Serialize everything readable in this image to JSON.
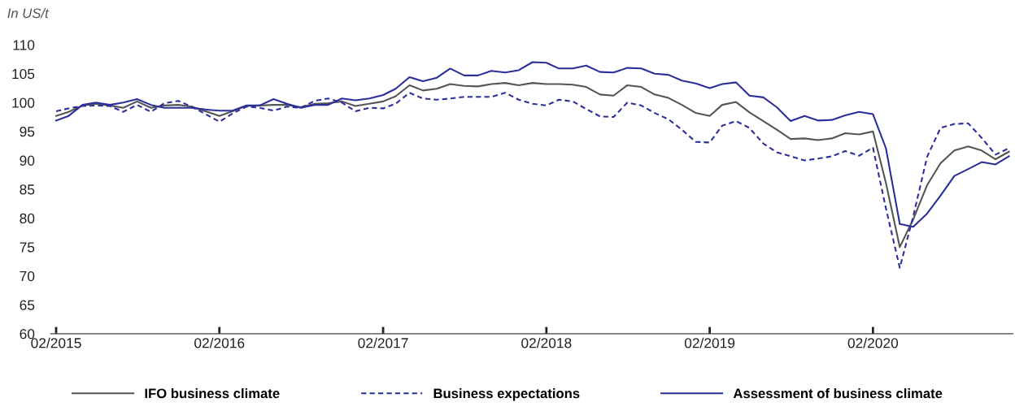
{
  "chart_data": {
    "type": "line",
    "ylabel": "In US/t",
    "x": [
      "2015-02",
      "2015-03",
      "2015-04",
      "2015-05",
      "2015-06",
      "2015-07",
      "2015-08",
      "2015-09",
      "2015-10",
      "2015-11",
      "2015-12",
      "2016-01",
      "2016-02",
      "2016-03",
      "2016-04",
      "2016-05",
      "2016-06",
      "2016-07",
      "2016-08",
      "2016-09",
      "2016-10",
      "2016-11",
      "2016-12",
      "2017-01",
      "2017-02",
      "2017-03",
      "2017-04",
      "2017-05",
      "2017-06",
      "2017-07",
      "2017-08",
      "2017-09",
      "2017-10",
      "2017-11",
      "2017-12",
      "2018-01",
      "2018-02",
      "2018-03",
      "2018-04",
      "2018-05",
      "2018-06",
      "2018-07",
      "2018-08",
      "2018-09",
      "2018-10",
      "2018-11",
      "2018-12",
      "2019-01",
      "2019-02",
      "2019-03",
      "2019-04",
      "2019-05",
      "2019-06",
      "2019-07",
      "2019-08",
      "2019-09",
      "2019-10",
      "2019-11",
      "2019-12",
      "2020-01",
      "2020-02",
      "2020-03",
      "2020-04",
      "2020-05",
      "2020-06",
      "2020-07",
      "2020-08",
      "2020-09",
      "2020-10",
      "2020-11",
      "2020-12"
    ],
    "series": [
      {
        "name": "IFO business climate",
        "color": "#555555",
        "line_style": "solid",
        "values": [
          97.7,
          98.4,
          99.5,
          99.8,
          99.5,
          99.1,
          100.2,
          99.1,
          99.5,
          99.6,
          99.3,
          98.5,
          97.7,
          98.5,
          99.4,
          99.5,
          99.6,
          99.6,
          99.2,
          99.8,
          99.9,
          100.2,
          99.4,
          99.8,
          100.2,
          101.1,
          103.0,
          102.1,
          102.4,
          103.2,
          102.9,
          102.8,
          103.2,
          103.4,
          103.0,
          103.4,
          103.2,
          103.2,
          103.1,
          102.7,
          101.4,
          101.2,
          103.0,
          102.7,
          101.4,
          100.8,
          99.6,
          98.2,
          97.7,
          99.6,
          100.1,
          98.3,
          96.8,
          95.3,
          93.7,
          93.8,
          93.5,
          93.8,
          94.7,
          94.5,
          95.0,
          86.1,
          75.0,
          79.8,
          85.7,
          89.5,
          91.7,
          92.4,
          91.7,
          90.2,
          91.5
        ]
      },
      {
        "name": "Business expectations",
        "color": "#2b2f9a",
        "line_style": "dashed",
        "values": [
          98.5,
          99.0,
          99.4,
          99.5,
          99.4,
          98.4,
          99.6,
          98.4,
          99.9,
          100.3,
          99.3,
          98.0,
          96.7,
          98.1,
          99.3,
          99.1,
          98.6,
          99.3,
          99.1,
          100.3,
          100.7,
          100.0,
          98.5,
          99.1,
          99.0,
          99.8,
          101.7,
          100.7,
          100.5,
          100.7,
          101.0,
          101.0,
          101.0,
          101.7,
          100.5,
          99.8,
          99.5,
          100.5,
          100.2,
          98.9,
          97.6,
          97.5,
          100.0,
          99.5,
          98.2,
          97.1,
          95.3,
          93.2,
          93.1,
          96.0,
          96.8,
          95.6,
          92.9,
          91.4,
          90.7,
          90.0,
          90.3,
          90.7,
          91.6,
          90.8,
          92.2,
          81.7,
          71.4,
          80.3,
          90.6,
          95.6,
          96.3,
          96.4,
          93.9,
          91.0,
          92.1
        ]
      },
      {
        "name": "Assessment of business climate",
        "color": "#2b2f9a",
        "line_style": "solid",
        "values": [
          96.9,
          97.7,
          99.6,
          100.0,
          99.6,
          100.0,
          100.6,
          99.6,
          99.1,
          99.1,
          99.1,
          98.8,
          98.6,
          98.6,
          99.5,
          99.5,
          100.6,
          99.8,
          99.1,
          99.6,
          99.6,
          100.7,
          100.4,
          100.7,
          101.3,
          102.4,
          104.4,
          103.7,
          104.3,
          105.9,
          104.7,
          104.7,
          105.5,
          105.2,
          105.6,
          107.0,
          106.9,
          105.9,
          105.9,
          106.4,
          105.3,
          105.2,
          106.0,
          105.9,
          105.0,
          104.8,
          103.8,
          103.3,
          102.5,
          103.2,
          103.5,
          101.2,
          100.9,
          99.2,
          96.8,
          97.7,
          96.9,
          97.0,
          97.8,
          98.4,
          98.0,
          92.1,
          79.0,
          78.5,
          80.8,
          83.9,
          87.3,
          88.5,
          89.7,
          89.3,
          90.7
        ]
      }
    ],
    "xlim": [
      "2015-01-20",
      "2020-12-10"
    ],
    "xticks": [
      {
        "value": "2015-02",
        "label": "02/2015"
      },
      {
        "value": "2016-02",
        "label": "02/2016"
      },
      {
        "value": "2017-02",
        "label": "02/2017"
      },
      {
        "value": "2018-02",
        "label": "02/2018"
      },
      {
        "value": "2019-02",
        "label": "02/2019"
      },
      {
        "value": "2020-02",
        "label": "02/2020"
      }
    ],
    "ylim": [
      60,
      110
    ],
    "yticks": [
      60,
      65,
      70,
      75,
      80,
      85,
      90,
      95,
      100,
      105,
      110
    ],
    "grid": false,
    "legend": "bottom",
    "marker": "none"
  }
}
